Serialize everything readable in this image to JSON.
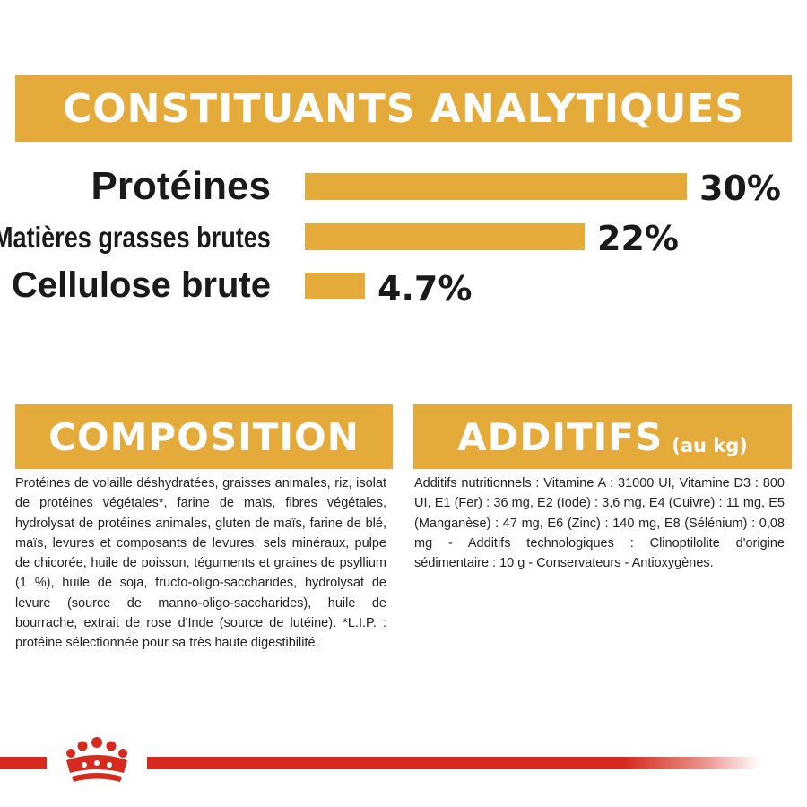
{
  "analytic": {
    "title": "CONSTITUANTS ANALYTIQUES",
    "rows": [
      {
        "label": "Protéines",
        "value": 30,
        "display": "30%"
      },
      {
        "label": "Matières grasses brutes",
        "value": 22,
        "display": "22%"
      },
      {
        "label": "Cellulose brute",
        "value": 4.7,
        "display": "4.7%"
      }
    ],
    "max_value": 30
  },
  "composition": {
    "title": "COMPOSITION",
    "text": "Protéines de volaille déshydratées, graisses animales, riz, isolat de protéines végétales*, farine de maïs, fibres végétales, hydrolysat de protéines animales, gluten de maïs, farine de blé, maïs, levures et composants de levures, sels minéraux, pulpe de chicorée, huile de poisson, téguments et graines de psyllium (1 %), huile de soja, fructo-oligo-saccharides, hydrolysat de levure (source de manno-oligo-saccharides), huile de bourrache, extrait de rose d'Inde (source de lutéine). *L.I.P. : protéine sélectionnée pour sa très haute digestibilité."
  },
  "additifs": {
    "title": "ADDITIFS",
    "subtitle": "(au kg)",
    "text": "Additifs nutritionnels : Vitamine A : 31000 UI, Vitamine D3 : 800 UI, E1 (Fer) : 36 mg, E2 (Iode) : 3,6 mg, E4 (Cuivre) : 11 mg, E5 (Manganèse) : 47 mg, E6 (Zinc) : 140 mg, E8 (Sélénium) : 0,08 mg - Additifs technologiques : Clinoptilolite d'origine sédimentaire : 10 g - Conservateurs - Antioxygènes."
  },
  "colors": {
    "accent": "#e4ab3a",
    "brand_red": "#d52b1e",
    "text": "#1a1a1a"
  },
  "icons": {
    "logo": "royal-canin-crown-icon"
  }
}
